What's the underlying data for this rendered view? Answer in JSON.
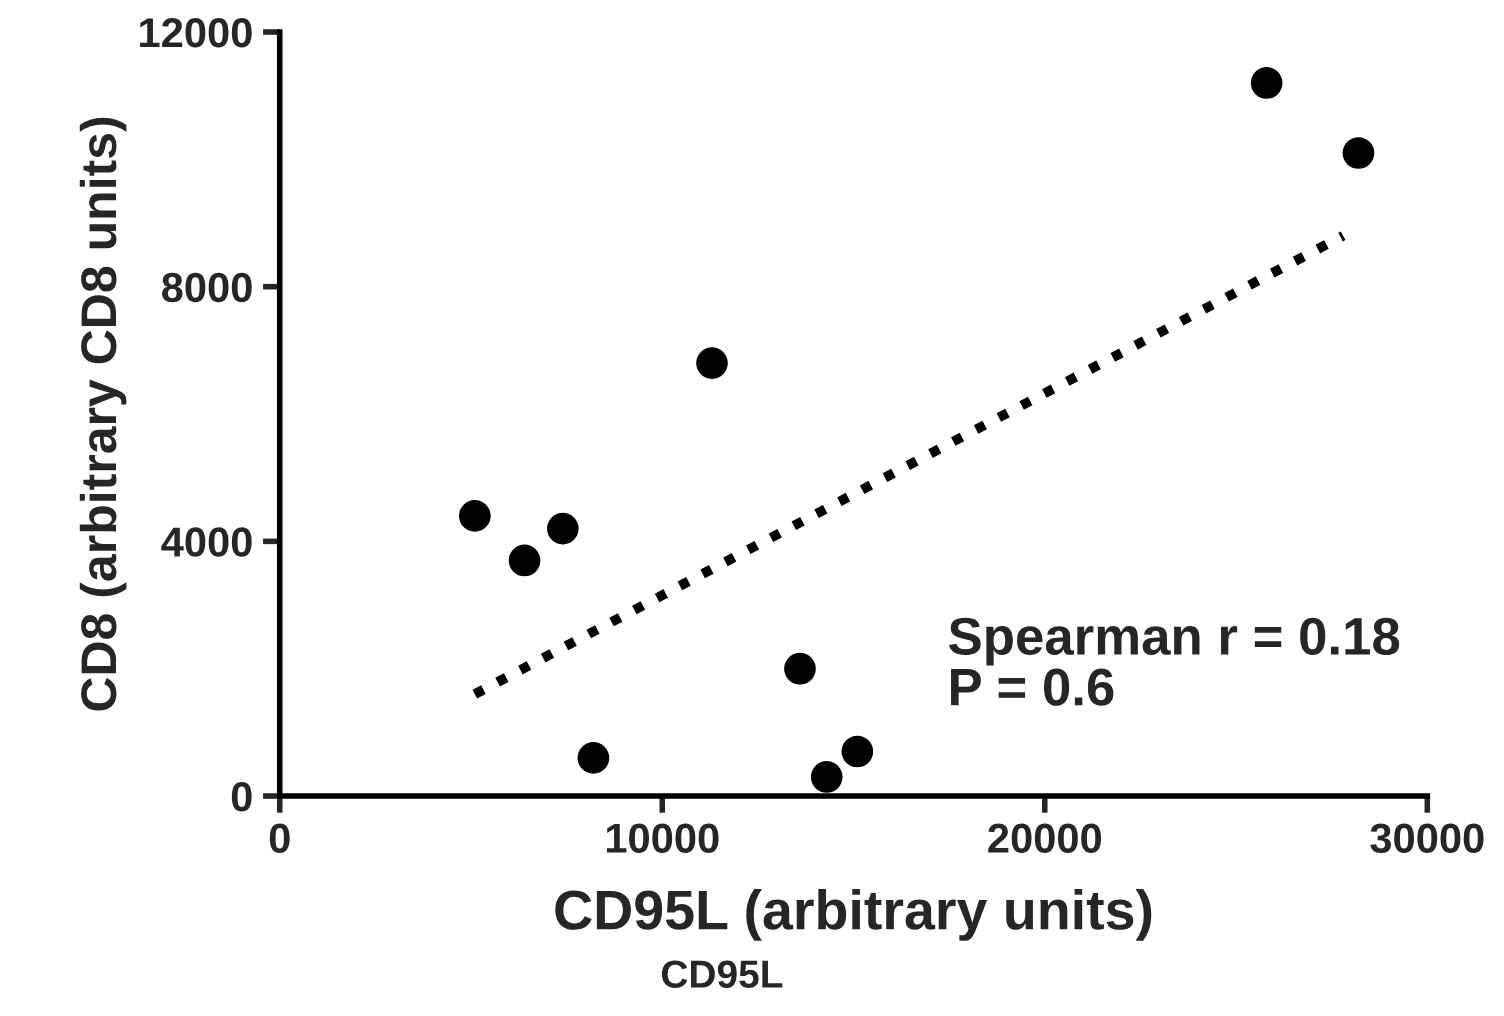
{
  "chart_data": {
    "type": "scatter",
    "xlabel": "CD95L (arbitrary units)",
    "ylabel": "CD8 (arbitrary CD8 units)",
    "xlim": [
      0,
      30000
    ],
    "ylim": [
      0,
      12000
    ],
    "xticks": [
      0,
      10000,
      20000,
      30000
    ],
    "yticks": [
      0,
      4000,
      8000,
      12000
    ],
    "grid": false,
    "legend": false,
    "series": [
      {
        "color": "#000000",
        "marker": "circle",
        "x": [
          5100,
          6400,
          7400,
          8200,
          11300,
          13600,
          14300,
          15100,
          25800,
          28200
        ],
        "values": [
          4400,
          3700,
          4200,
          600,
          6800,
          2000,
          300,
          700,
          11200,
          10100
        ]
      },
      {
        "type": "line",
        "color": "#000000",
        "line_style": "dotted",
        "x": [
          5100,
          27800
        ],
        "values": [
          1600,
          8800
        ]
      }
    ],
    "annotations": [
      "Spearman r = 0.18",
      "P = 0.6",
      "CD95L"
    ]
  }
}
